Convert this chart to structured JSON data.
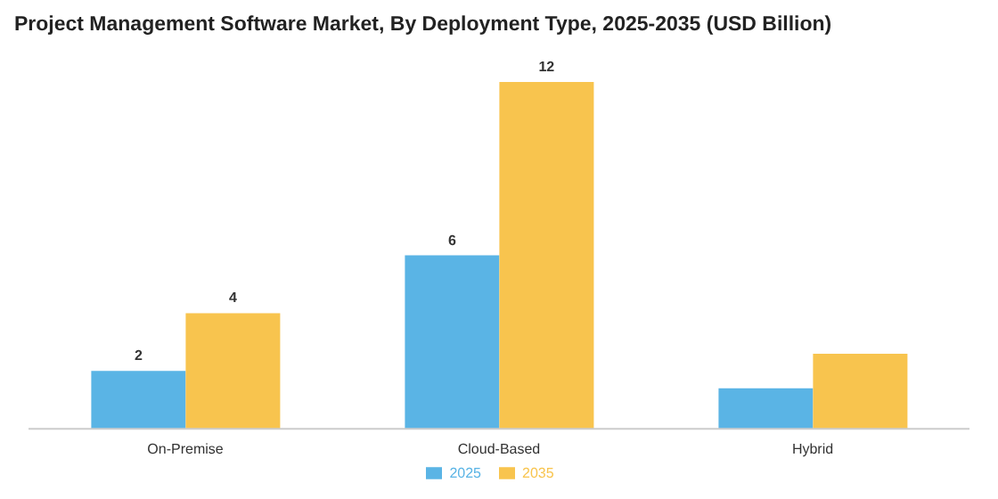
{
  "chart_data": {
    "type": "bar",
    "title": "Project Management Software Market, By Deployment Type, 2025-2035 (USD Billion)",
    "categories": [
      "On-Premise",
      "Cloud-Based",
      "Hybrid"
    ],
    "series": [
      {
        "name": "2025",
        "color": "#5ab4e5",
        "values": [
          2,
          6,
          1.4
        ],
        "value_labels": [
          "2",
          "6",
          null
        ]
      },
      {
        "name": "2035",
        "color": "#f8c44e",
        "values": [
          4,
          12,
          2.6
        ],
        "value_labels": [
          "4",
          "12",
          null
        ]
      }
    ],
    "legend": "bottom",
    "grid": false
  }
}
